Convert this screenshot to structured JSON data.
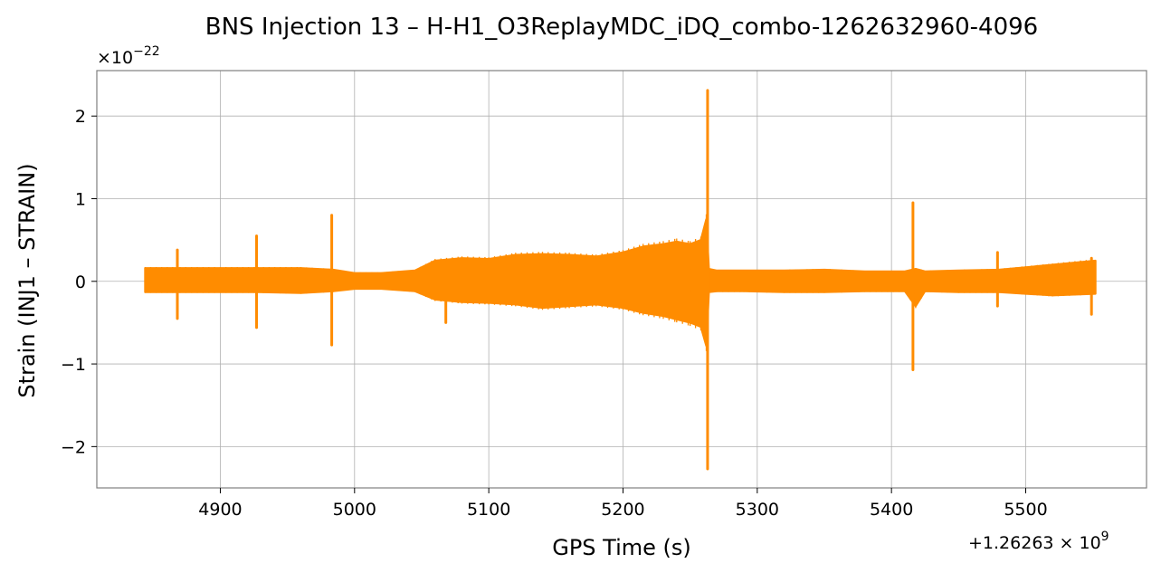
{
  "chart_data": {
    "type": "line",
    "title": "BNS Injection 13 – H-H1_O3ReplayMDC_iDQ_combo-1262632960-4096",
    "xlabel": "GPS Time (s)",
    "ylabel": "Strain (INJ1 – STRAIN)",
    "y_scale_base": "×10",
    "y_scale_exp": "−22",
    "x_offset_base": "+1.26263 × 10",
    "x_offset_exp": "9",
    "xlim": [
      4808,
      5590
    ],
    "ylim": [
      -2.5,
      2.55
    ],
    "xticks": [
      4900,
      5000,
      5100,
      5200,
      5300,
      5400,
      5500
    ],
    "xtick_labels": [
      "4900",
      "5000",
      "5100",
      "5200",
      "5300",
      "5400",
      "5500"
    ],
    "yticks": [
      -2,
      -1,
      0,
      1,
      2
    ],
    "ytick_labels": [
      "−2",
      "−1",
      "0",
      "1",
      "2"
    ],
    "grid": true,
    "series": [
      {
        "color": "#ff8c00",
        "envelope": {
          "x": [
            4844,
            4870,
            4900,
            4928,
            4960,
            4984,
            5000,
            5020,
            5045,
            5060,
            5080,
            5100,
            5120,
            5140,
            5160,
            5180,
            5200,
            5215,
            5230,
            5240,
            5250,
            5258,
            5262,
            5264,
            5270,
            5290,
            5320,
            5350,
            5380,
            5410,
            5418,
            5425,
            5450,
            5480,
            5500,
            5520,
            5552
          ],
          "upper": [
            0.16,
            0.16,
            0.16,
            0.16,
            0.16,
            0.14,
            0.1,
            0.1,
            0.13,
            0.25,
            0.28,
            0.27,
            0.32,
            0.33,
            0.32,
            0.3,
            0.35,
            0.42,
            0.45,
            0.48,
            0.45,
            0.5,
            0.75,
            0.15,
            0.13,
            0.13,
            0.13,
            0.14,
            0.12,
            0.12,
            0.15,
            0.12,
            0.13,
            0.14,
            0.17,
            0.2,
            0.25
          ],
          "lower": [
            -0.13,
            -0.13,
            -0.13,
            -0.13,
            -0.14,
            -0.12,
            -0.09,
            -0.09,
            -0.12,
            -0.22,
            -0.25,
            -0.26,
            -0.28,
            -0.32,
            -0.3,
            -0.28,
            -0.32,
            -0.38,
            -0.42,
            -0.46,
            -0.5,
            -0.55,
            -0.78,
            -0.13,
            -0.12,
            -0.12,
            -0.13,
            -0.13,
            -0.12,
            -0.12,
            -0.3,
            -0.12,
            -0.13,
            -0.13,
            -0.15,
            -0.17,
            -0.15
          ]
        },
        "spikes": [
          {
            "x": 4868,
            "max": 0.38,
            "min": -0.45
          },
          {
            "x": 4927,
            "max": 0.55,
            "min": -0.56
          },
          {
            "x": 4983,
            "max": 0.8,
            "min": -0.77
          },
          {
            "x": 5068,
            "max": 0.15,
            "min": -0.5
          },
          {
            "x": 5263,
            "max": 2.31,
            "min": -2.27
          },
          {
            "x": 5416,
            "max": 0.95,
            "min": -1.07
          },
          {
            "x": 5479,
            "max": 0.35,
            "min": -0.3
          },
          {
            "x": 5549,
            "max": 0.28,
            "min": -0.4
          }
        ]
      }
    ]
  }
}
